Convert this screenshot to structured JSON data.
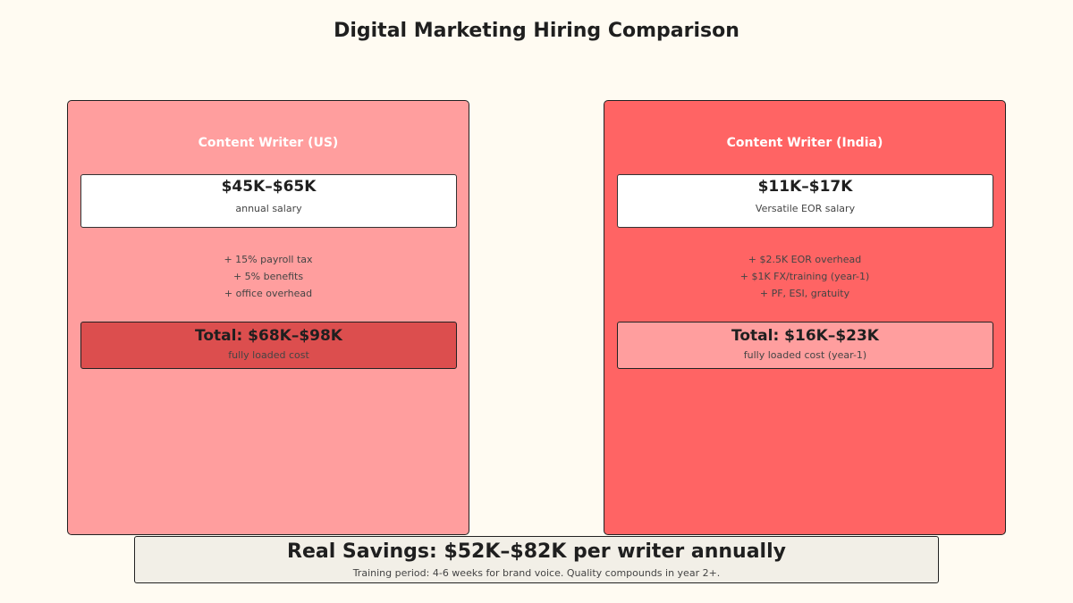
{
  "title": "Digital Marketing Hiring Comparison",
  "colors": {
    "background": "#fffbf2",
    "us_card": "#ff9e9e",
    "india_card": "#ff6464",
    "us_total": "#dc4e4e",
    "india_total": "#ff9e9e",
    "savings_box": "#f2efe7"
  },
  "us": {
    "heading": "Content Writer (US)",
    "salary": "$45K–$65K",
    "salary_note": "annual salary",
    "addons": [
      "+ 15% payroll tax",
      "+ 5% benefits",
      "+ office overhead"
    ],
    "total": "Total: $68K–$98K",
    "total_note": "fully loaded cost"
  },
  "india": {
    "heading": "Content Writer (India)",
    "salary": "$11K–$17K",
    "salary_note": "Versatile EOR salary",
    "addons": [
      "+ $2.5K EOR overhead",
      "+ $1K FX/training (year-1)",
      "+ PF, ESI, gratuity"
    ],
    "total": "Total: $16K–$23K",
    "total_note": "fully loaded cost (year-1)"
  },
  "savings": {
    "headline": "Real Savings: $52K–$82K per writer annually",
    "note": "Training period: 4-6 weeks for brand voice. Quality compounds in year 2+."
  }
}
